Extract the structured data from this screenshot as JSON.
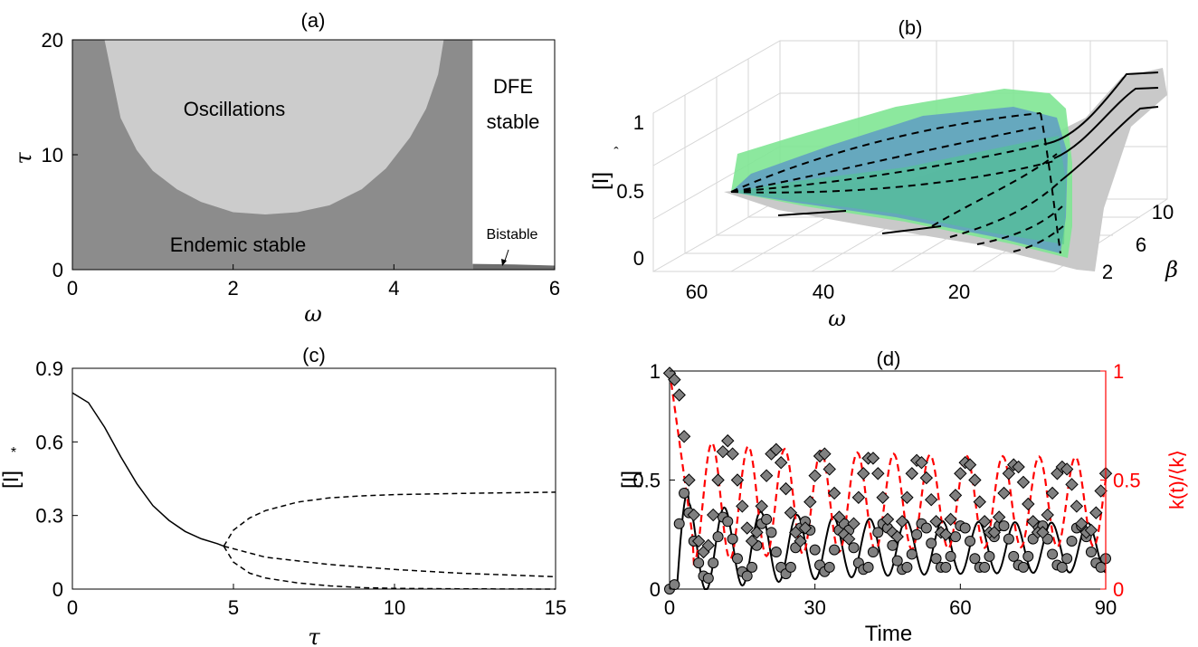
{
  "panels": {
    "a": {
      "tag": "(a)"
    },
    "b": {
      "tag": "(b)"
    },
    "c": {
      "tag": "(c)"
    },
    "d": {
      "tag": "(d)"
    }
  },
  "chart_data": [
    {
      "id": "a",
      "type": "heatmap",
      "title": "(a)",
      "xlabel": "ω",
      "ylabel": "τ",
      "xlim": [
        0,
        6
      ],
      "ylim": [
        0,
        20
      ],
      "xticks": [
        0,
        2,
        4,
        6
      ],
      "yticks": [
        0,
        10,
        20
      ],
      "regions": [
        {
          "name": "Oscillations",
          "label": "Oscillations",
          "color": "#cccccc",
          "boundary_omega": [
            0.4,
            0.6,
            0.8,
            1.0,
            1.3,
            1.6,
            2.0,
            2.4,
            2.8,
            3.2,
            3.6,
            3.9,
            4.2,
            4.4,
            4.55,
            4.62
          ],
          "boundary_tau": [
            20,
            13.2,
            10.4,
            8.6,
            7.0,
            5.9,
            5.0,
            4.8,
            5.0,
            5.6,
            7.0,
            8.8,
            11.5,
            14.0,
            17.0,
            20
          ]
        },
        {
          "name": "Endemic stable",
          "label": "Endemic stable",
          "color": "#8c8c8c",
          "omega_range": [
            0,
            4.98
          ]
        },
        {
          "name": "DFE stable",
          "label": [
            "DFE",
            "stable"
          ],
          "color": "#ffffff",
          "omega_range": [
            4.98,
            6
          ]
        },
        {
          "name": "Bistable",
          "label": "Bistable",
          "color": "#6e6e6e",
          "boundary_omega": [
            4.98,
            5.5,
            6.0
          ],
          "boundary_tau": [
            0.5,
            0.45,
            0.35
          ]
        }
      ]
    },
    {
      "id": "b",
      "type": "surface",
      "title": "(b)",
      "xlabel": "ω",
      "ylabel": "β",
      "zlabel": "[I]",
      "z_accent": "ˆ",
      "xticks": [
        60,
        40,
        20
      ],
      "yticks": [
        2,
        6,
        10
      ],
      "zticks": [
        0,
        0.5,
        1
      ],
      "surfaces": [
        {
          "name": "surface-gray",
          "color": "#c8c8c8"
        },
        {
          "name": "surface-blue",
          "color": "#5b8fd6"
        },
        {
          "name": "surface-green",
          "color": "#72e38a"
        }
      ],
      "curves": [
        "dashed",
        "solid"
      ]
    },
    {
      "id": "c",
      "type": "line",
      "title": "(c)",
      "xlabel": "τ",
      "ylabel": "[I]",
      "ylabel_sup": "*",
      "xlim": [
        0,
        15
      ],
      "ylim": [
        0,
        0.9
      ],
      "xticks": [
        0,
        5,
        10,
        15
      ],
      "yticks": [
        0,
        0.3,
        0.6,
        0.9
      ],
      "series": [
        {
          "style": "solid",
          "x": [
            0,
            0.5,
            1,
            1.5,
            2,
            2.5,
            3,
            3.5,
            4,
            4.5,
            4.7
          ],
          "y": [
            0.8,
            0.76,
            0.66,
            0.54,
            0.43,
            0.34,
            0.28,
            0.235,
            0.205,
            0.185,
            0.175
          ]
        },
        {
          "style": "dashed",
          "x": [
            4.7,
            5.0,
            5.5,
            6,
            7,
            8,
            9,
            10,
            12,
            15
          ],
          "y": [
            0.175,
            0.24,
            0.29,
            0.32,
            0.355,
            0.372,
            0.38,
            0.385,
            0.39,
            0.395
          ]
        },
        {
          "style": "dashed",
          "x": [
            4.7,
            5.0,
            5.5,
            6,
            7,
            8,
            9,
            10,
            12,
            15
          ],
          "y": [
            0.175,
            0.11,
            0.065,
            0.045,
            0.025,
            0.013,
            0.006,
            0.003,
            0.001,
            0.0
          ]
        },
        {
          "style": "dashed",
          "x": [
            4.7,
            6,
            8,
            10,
            12,
            15
          ],
          "y": [
            0.175,
            0.13,
            0.1,
            0.08,
            0.065,
            0.05
          ]
        }
      ]
    },
    {
      "id": "d",
      "type": "line",
      "title": "(d)",
      "xlabel": "Time",
      "ylabel": "[I]",
      "ylabel_right": "k(t)/⟨k⟩",
      "xlim": [
        0,
        90
      ],
      "ylim": [
        0,
        1
      ],
      "ylim_right": [
        0,
        1
      ],
      "xticks": [
        0,
        30,
        60,
        90
      ],
      "yticks": [
        0,
        0.5,
        1
      ],
      "yticks_right": [
        0,
        0.5,
        1
      ],
      "right_axis_color": "#ff0000",
      "series": [
        {
          "style": "solid",
          "color": "#000000",
          "model": "prevalence",
          "start": 0,
          "peak": 0.45,
          "mean": 0.19,
          "amp": 0.11,
          "period": 7.5
        },
        {
          "style": "dashed",
          "color": "#ff0000",
          "model": "degree",
          "start": 1.0,
          "mean": 0.4,
          "amp": 0.2,
          "period": 7.5
        }
      ],
      "markers": {
        "circles_y": [
          0.0,
          0.02,
          0.3,
          0.44,
          0.35,
          0.22,
          0.12,
          0.06,
          0.05,
          0.12,
          0.24,
          0.33,
          0.31,
          0.23,
          0.14,
          0.08,
          0.06,
          0.1,
          0.2,
          0.3,
          0.32,
          0.26,
          0.17,
          0.1,
          0.07,
          0.1,
          0.19,
          0.28,
          0.31,
          0.27,
          0.18,
          0.11,
          0.08,
          0.1,
          0.18,
          0.27,
          0.3,
          0.27,
          0.19,
          0.12,
          0.09,
          0.1,
          0.17,
          0.26,
          0.3,
          0.28,
          0.2,
          0.13,
          0.09,
          0.1,
          0.16,
          0.25,
          0.3,
          0.28,
          0.21,
          0.14,
          0.1,
          0.1,
          0.15,
          0.24,
          0.29,
          0.28,
          0.22,
          0.14,
          0.1,
          0.1,
          0.15,
          0.24,
          0.29,
          0.29,
          0.23,
          0.15,
          0.11,
          0.1,
          0.15,
          0.23,
          0.29,
          0.29,
          0.23,
          0.16,
          0.11,
          0.1,
          0.14,
          0.22,
          0.28,
          0.29,
          0.24,
          0.17,
          0.12,
          0.1,
          0.14
        ],
        "diamonds_y": [
          0.99,
          0.96,
          0.89,
          0.7,
          0.5,
          0.34,
          0.22,
          0.17,
          0.2,
          0.34,
          0.5,
          0.63,
          0.68,
          0.62,
          0.5,
          0.38,
          0.28,
          0.22,
          0.26,
          0.38,
          0.52,
          0.62,
          0.64,
          0.58,
          0.46,
          0.35,
          0.26,
          0.22,
          0.28,
          0.4,
          0.52,
          0.61,
          0.62,
          0.55,
          0.44,
          0.33,
          0.25,
          0.23,
          0.3,
          0.42,
          0.53,
          0.6,
          0.6,
          0.53,
          0.42,
          0.32,
          0.26,
          0.24,
          0.31,
          0.42,
          0.53,
          0.59,
          0.58,
          0.51,
          0.41,
          0.31,
          0.26,
          0.25,
          0.32,
          0.43,
          0.53,
          0.58,
          0.57,
          0.5,
          0.4,
          0.31,
          0.26,
          0.26,
          0.33,
          0.44,
          0.53,
          0.57,
          0.56,
          0.49,
          0.39,
          0.31,
          0.26,
          0.26,
          0.34,
          0.44,
          0.53,
          0.56,
          0.55,
          0.48,
          0.38,
          0.3,
          0.26,
          0.27,
          0.35,
          0.45,
          0.53
        ]
      }
    }
  ],
  "labels_b": {
    "x60": "60",
    "x40": "40",
    "x20": "20",
    "y2": "2",
    "y6": "6",
    "y10": "10",
    "z0": "0",
    "z05": "0.5",
    "z1": "1"
  }
}
